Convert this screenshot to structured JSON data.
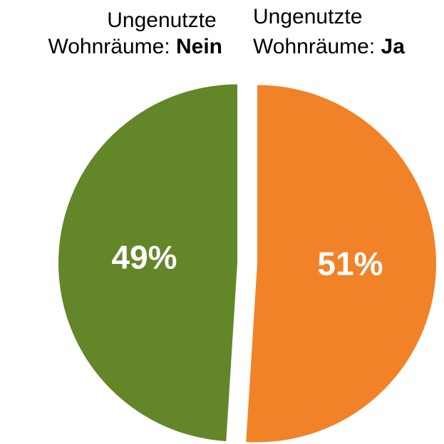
{
  "chart_data": {
    "type": "pie",
    "categories": [
      "Ungenutzte Wohnräume: Ja",
      "Ungenutzte Wohnräume: Nein"
    ],
    "values": [
      51,
      49
    ],
    "value_labels": [
      "51%",
      "49%"
    ],
    "colors": [
      "#f28227",
      "#628628"
    ]
  }
}
